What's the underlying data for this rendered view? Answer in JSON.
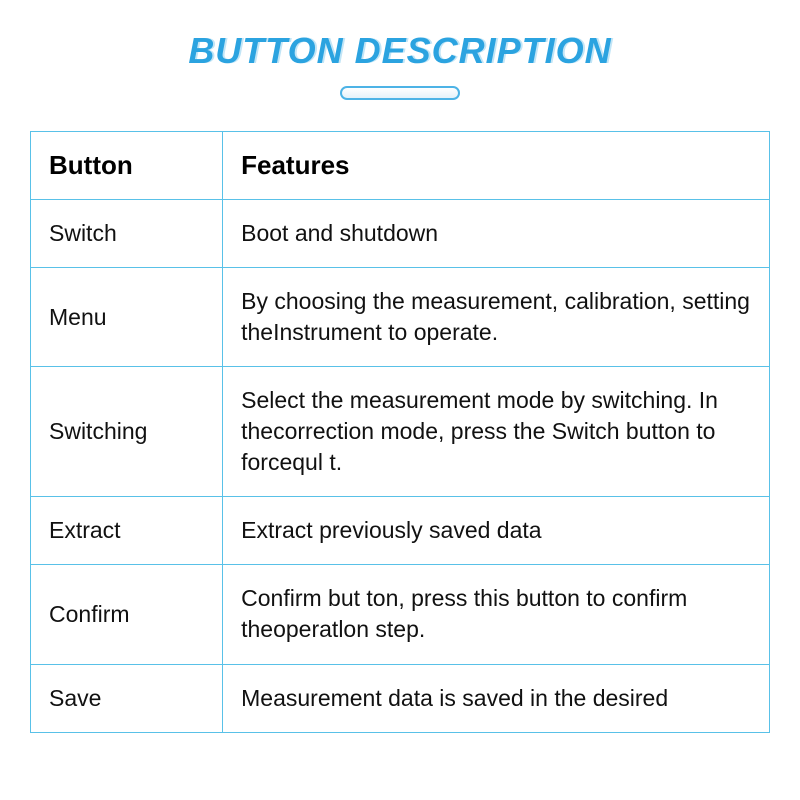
{
  "title": "BUTTON DESCRIPTION",
  "colors": {
    "title_color": "#2ba3e0",
    "border_color": "#59c1e8",
    "button_name_color": "#e23a2a",
    "text_color": "#111111",
    "background_color": "#ffffff"
  },
  "typography": {
    "title_fontsize": 36,
    "header_fontsize": 26,
    "cell_fontsize": 23
  },
  "table": {
    "type": "table",
    "columns": [
      "Button",
      "Features"
    ],
    "column_widths": [
      "26%",
      "74%"
    ],
    "rows": [
      {
        "button": "Switch",
        "features": "Boot and shutdown"
      },
      {
        "button": "Menu",
        "features": "By choosing the measurement, calibration, setting theInstrument to operate."
      },
      {
        "button": "Switching",
        "features": "Select the measurement mode by switching. In thecorrection mode, press the Switch button to forcequl t."
      },
      {
        "button": "Extract",
        "features": "Extract previously saved data"
      },
      {
        "button": "Confirm",
        "features": "Confirm but ton, press this button to confirm theoperatlon step."
      },
      {
        "button": "Save",
        "features": "Measurement data is saved in the desired"
      }
    ]
  }
}
